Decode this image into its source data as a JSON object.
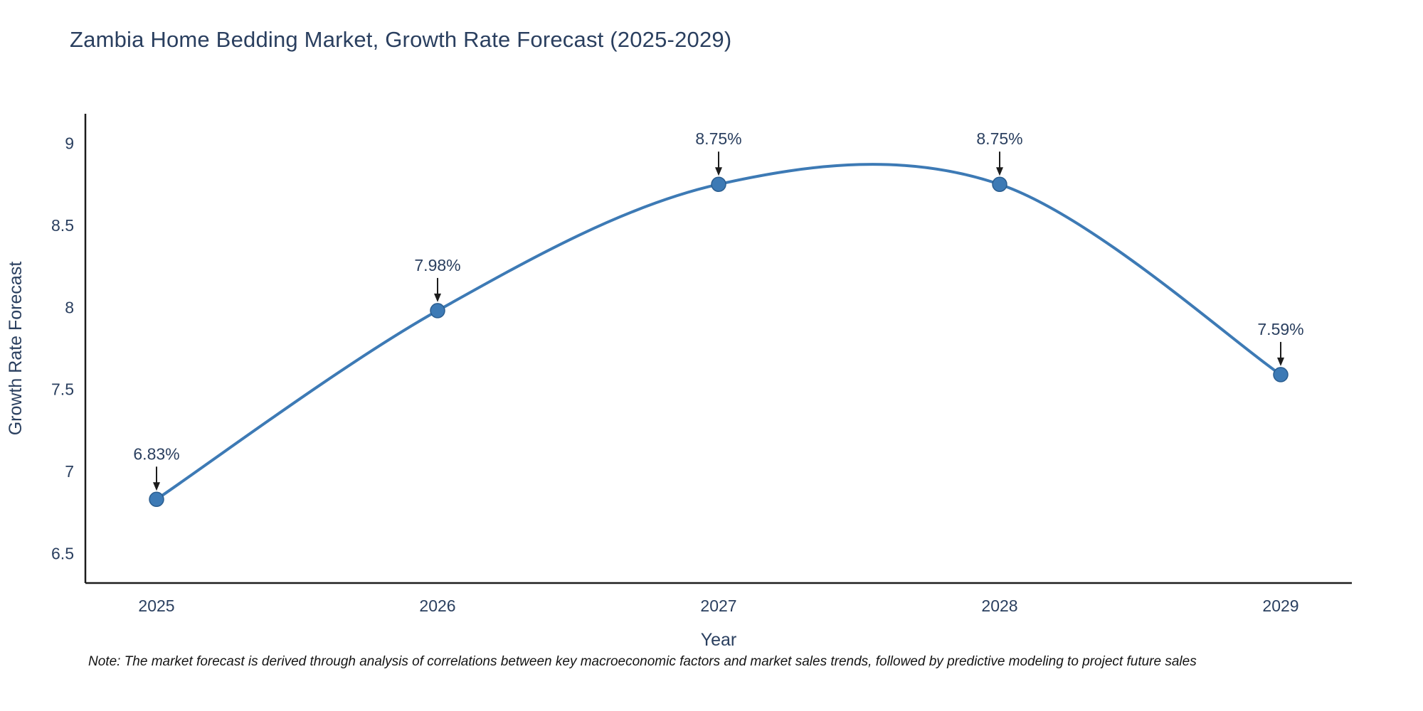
{
  "chart_data": {
    "type": "line",
    "title": "Zambia Home Bedding Market, Growth Rate Forecast (2025-2029)",
    "xlabel": "Year",
    "ylabel": "Growth Rate Forecast",
    "x": [
      2025,
      2026,
      2027,
      2028,
      2029
    ],
    "series": [
      {
        "name": "Growth Rate Forecast",
        "values": [
          6.83,
          7.98,
          8.75,
          8.75,
          7.59
        ]
      }
    ],
    "annotations": [
      "6.83%",
      "7.98%",
      "8.75%",
      "8.75%",
      "7.59%"
    ],
    "yticks": [
      6.5,
      7,
      7.5,
      8,
      8.5,
      9
    ],
    "ylim": [
      6.32,
      9.18
    ],
    "line_shape": "spline",
    "grid": false,
    "legend": "none",
    "colors": {
      "line": "#3d7ab5",
      "marker": "#3d7ab5",
      "marker_edge": "#2a5d8f",
      "title_text": "#2a3f5f",
      "axis_text": "#2a3f5f",
      "axis_line": "#1c1c1c",
      "annotation_text": "#2a3f5f",
      "arrow": "#1c1c1c",
      "background": "#ffffff"
    }
  },
  "note": "Note: The market forecast is derived through analysis of correlations between key macroeconomic factors and market sales trends, followed by predictive modeling to project future sales"
}
